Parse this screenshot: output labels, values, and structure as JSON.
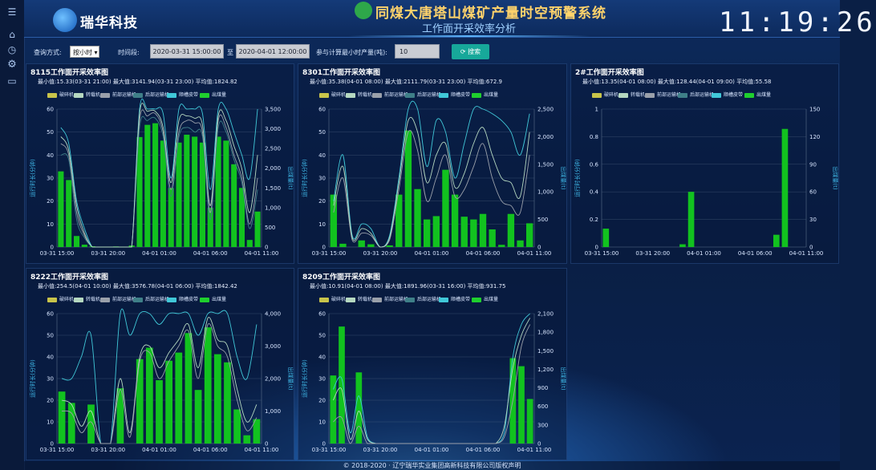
{
  "header": {
    "brand": "瑞华科技",
    "title": "同煤大唐塔山煤矿产量时空预警系统",
    "subtitle": "工作面开采效率分析",
    "clock": "11:19:26"
  },
  "sidebar": {
    "icons": [
      "menu-icon",
      "home-icon",
      "clock-icon",
      "gear-icon",
      "monitor-icon"
    ]
  },
  "toolbar": {
    "mode_label": "查询方式:",
    "mode_value": "按小时",
    "period_label": "时间段:",
    "start": "2020-03-31 15:00:00",
    "to": "至",
    "end": "2020-04-01 12:00:00",
    "min_label": "参与计算最小时产量(吨):",
    "min_value": "10",
    "search_label": "搜索"
  },
  "legend": [
    {
      "name": "破碎机",
      "color": "#c8c44a"
    },
    {
      "name": "转载机",
      "color": "#b5d8c0"
    },
    {
      "name": "前部运输机",
      "color": "#9aa0aa"
    },
    {
      "name": "后部运输机",
      "color": "#3e7f88"
    },
    {
      "name": "顺槽皮带",
      "color": "#40c8d8"
    },
    {
      "name": "出煤量",
      "color": "#1fcf2e"
    }
  ],
  "colors": {
    "bar": "#12c21f",
    "grid": "#5a6f8a",
    "axis_text": "#d8e6ff",
    "axis_title": "#3fb8e8"
  },
  "panels": [
    {
      "id": "8115",
      "title": "8115工作面开采效率图",
      "stats": "最小值:15.33(03-31 21:00)  最大值:3141.94(03-31 23:00)  平均值:1824.82",
      "chart_data": {
        "type": "bar",
        "ylabel": "运行时长(分钟)",
        "y2label": "出煤量(t)",
        "ylim": [
          0,
          60
        ],
        "y2lim": [
          0,
          3500
        ],
        "yticks": [
          0,
          10,
          20,
          30,
          40,
          50,
          60
        ],
        "y2ticks": [
          "0",
          "500",
          "1,000",
          "1,500",
          "2,000",
          "2,500",
          "3,000",
          "3,500"
        ],
        "xlabels": [
          "03-31 15:00",
          "03-31 20:00",
          "04-01 01:00",
          "04-01 06:00",
          "04-01 11:00"
        ],
        "bars": [
          1920,
          1700,
          280,
          60,
          20,
          0,
          10,
          15,
          0,
          40,
          2790,
          3100,
          3141,
          2700,
          1500,
          2650,
          2850,
          2800,
          2650,
          1000,
          2800,
          2700,
          2100,
          1500,
          180,
          900
        ],
        "series": [
          {
            "name": "顺槽皮带",
            "values": [
              52,
              45,
              20,
              8,
              0,
              0,
              0,
              0,
              0,
              0,
              60,
              60,
              60,
              58,
              30,
              60,
              60,
              60,
              58,
              25,
              60,
              60,
              50,
              40,
              30,
              60
            ]
          },
          {
            "name": "前部运输机",
            "values": [
              45,
              40,
              15,
              5,
              0,
              0,
              0,
              0,
              0,
              0,
              55,
              57,
              58,
              50,
              25,
              50,
              55,
              54,
              50,
              15,
              55,
              52,
              40,
              30,
              10,
              30
            ]
          },
          {
            "name": "后部运输机",
            "values": [
              40,
              38,
              12,
              4,
              0,
              0,
              0,
              0,
              0,
              0,
              52,
              55,
              56,
              48,
              22,
              48,
              52,
              50,
              48,
              12,
              52,
              50,
              38,
              28,
              8,
              25
            ]
          },
          {
            "name": "转载机",
            "values": [
              48,
              42,
              18,
              6,
              0,
              0,
              0,
              0,
              0,
              0,
              58,
              59,
              59,
              52,
              28,
              55,
              57,
              56,
              53,
              18,
              57,
              55,
              44,
              34,
              15,
              40
            ]
          }
        ]
      }
    },
    {
      "id": "8301",
      "title": "8301工作面开采效率图",
      "stats": "最小值:35.38(04-01 08:00)  最大值:2111.79(03-31 23:00)  平均值:672.9",
      "chart_data": {
        "type": "bar",
        "ylabel": "运行时长(分钟)",
        "y2label": "出煤量(t)",
        "ylim": [
          0,
          60
        ],
        "y2lim": [
          0,
          2500
        ],
        "yticks": [
          0,
          10,
          20,
          30,
          40,
          50,
          60
        ],
        "y2ticks": [
          "0",
          "500",
          "1,000",
          "1,500",
          "2,000",
          "2,500"
        ],
        "xlabels": [
          "03-31 15:00",
          "03-31 20:00",
          "04-01 01:00",
          "04-01 06:00",
          "04-01 11:00"
        ],
        "bars": [
          950,
          60,
          0,
          120,
          50,
          0,
          30,
          950,
          2111,
          1050,
          500,
          560,
          1400,
          950,
          550,
          500,
          600,
          320,
          40,
          600,
          120,
          430
        ],
        "series": [
          {
            "name": "顺槽皮带",
            "values": [
              20,
              40,
              5,
              10,
              8,
              0,
              5,
              30,
              60,
              60,
              35,
              55,
              50,
              30,
              45,
              60,
              60,
              58,
              55,
              50,
              40,
              58
            ]
          },
          {
            "name": "前部运输机",
            "values": [
              15,
              30,
              3,
              6,
              5,
              0,
              3,
              25,
              50,
              42,
              20,
              30,
              40,
              22,
              25,
              35,
              45,
              30,
              20,
              18,
              15,
              40
            ]
          },
          {
            "name": "转载机",
            "values": [
              18,
              35,
              4,
              8,
              6,
              0,
              4,
              28,
              55,
              50,
              28,
              40,
              45,
              26,
              32,
              45,
              52,
              40,
              30,
              28,
              22,
              50
            ]
          }
        ]
      }
    },
    {
      "id": "2#",
      "title": "2#工作面开采效率图",
      "stats": "最小值:13.35(04-01 08:00)  最大值:128.44(04-01 09:00)  平均值:55.58",
      "chart_data": {
        "type": "bar",
        "ylabel": "运行时长(分钟)",
        "y2label": "出煤量(t)",
        "ylim": [
          0,
          1
        ],
        "y2lim": [
          0,
          150
        ],
        "yticks": [
          "0",
          "0.2",
          "0.4",
          "0.6",
          "0.8",
          "1"
        ],
        "y2ticks": [
          "0",
          "30",
          "60",
          "90",
          "120",
          "150"
        ],
        "xlabels": [
          "03-31 15:00",
          "03-31 20:00",
          "04-01 01:00",
          "04-01 06:00",
          "04-01 11:00"
        ],
        "bars": [
          20,
          0,
          0,
          0,
          0,
          0,
          0,
          0,
          0,
          3,
          60,
          0,
          0,
          0,
          0,
          0,
          0,
          0,
          0,
          0,
          13.35,
          128.44,
          0,
          0
        ],
        "series": []
      }
    },
    {
      "id": "8222",
      "title": "8222工作面开采效率图",
      "stats": "最小值:254.5(04-01 10:00)  最大值:3576.78(04-01 06:00)  平均值:1842.42",
      "chart_data": {
        "type": "bar",
        "ylabel": "运行时长(分钟)",
        "y2label": "出煤量(t)",
        "ylim": [
          0,
          60
        ],
        "y2lim": [
          0,
          4000
        ],
        "yticks": [
          0,
          10,
          20,
          30,
          40,
          50,
          60
        ],
        "y2ticks": [
          "0",
          "1,000",
          "2,000",
          "3,000",
          "4,000"
        ],
        "xlabels": [
          "03-31 15:00",
          "03-31 20:00",
          "04-01 01:00",
          "04-01 06:00",
          "04-01 11:00"
        ],
        "bars": [
          1600,
          1250,
          0,
          1200,
          0,
          0,
          1700,
          0,
          2600,
          2950,
          1950,
          2550,
          2800,
          3400,
          1650,
          3576,
          2750,
          2500,
          1050,
          254,
          750
        ],
        "series": [
          {
            "name": "顺槽皮带",
            "values": [
              30,
              30,
              40,
              50,
              0,
              0,
              60,
              50,
              60,
              60,
              55,
              60,
              60,
              60,
              50,
              60,
              60,
              60,
              40,
              30,
              55
            ]
          },
          {
            "name": "转载机",
            "values": [
              20,
              18,
              8,
              15,
              0,
              0,
              30,
              5,
              40,
              45,
              35,
              42,
              48,
              55,
              35,
              58,
              48,
              45,
              25,
              10,
              18
            ]
          },
          {
            "name": "前部运输机",
            "values": [
              15,
              14,
              5,
              10,
              0,
              0,
              25,
              3,
              38,
              42,
              30,
              38,
              45,
              52,
              30,
              55,
              45,
              40,
              20,
              6,
              12
            ]
          }
        ]
      }
    },
    {
      "id": "8209",
      "title": "8209工作面开采效率图",
      "stats": "最小值:10.91(04-01 08:00)  最大值:1891.96(03-31 16:00)  平均值:931.75",
      "chart_data": {
        "type": "bar",
        "ylabel": "运行时长(分钟)",
        "y2label": "出煤量(t)",
        "ylim": [
          0,
          60
        ],
        "y2lim": [
          0,
          2100
        ],
        "yticks": [
          0,
          10,
          20,
          30,
          40,
          50,
          60
        ],
        "y2ticks": [
          "0",
          "300",
          "600",
          "900",
          "1,200",
          "1,500",
          "1,800",
          "2,100"
        ],
        "xlabels": [
          "03-31 15:00",
          "03-31 20:00",
          "04-01 01:00",
          "04-01 06:00",
          "04-01 11:00"
        ],
        "bars": [
          1100,
          1891,
          0,
          1150,
          0,
          0,
          0,
          0,
          0,
          0,
          0,
          0,
          0,
          0,
          0,
          0,
          0,
          0,
          0,
          0,
          0,
          1380,
          1250,
          720
        ],
        "series": [
          {
            "name": "顺槽皮带",
            "values": [
              25,
              30,
              5,
              22,
              3,
              0,
              0,
              0,
              0,
              0,
              0,
              0,
              0,
              0,
              0,
              0,
              0,
              0,
              0,
              0,
              5,
              40,
              55,
              60
            ]
          },
          {
            "name": "转载机",
            "values": [
              20,
              25,
              2,
              15,
              2,
              0,
              0,
              0,
              0,
              0,
              0,
              0,
              0,
              0,
              0,
              0,
              0,
              0,
              0,
              0,
              8,
              35,
              50,
              58
            ]
          },
          {
            "name": "前部运输机",
            "values": [
              10,
              12,
              0,
              8,
              0,
              0,
              0,
              0,
              0,
              0,
              0,
              0,
              0,
              0,
              0,
              0,
              0,
              0,
              0,
              0,
              3,
              20,
              45,
              55
            ]
          }
        ]
      }
    }
  ],
  "footer": "© 2018-2020 · 辽宁瑞华实业集团高新科技有限公司版权声明"
}
